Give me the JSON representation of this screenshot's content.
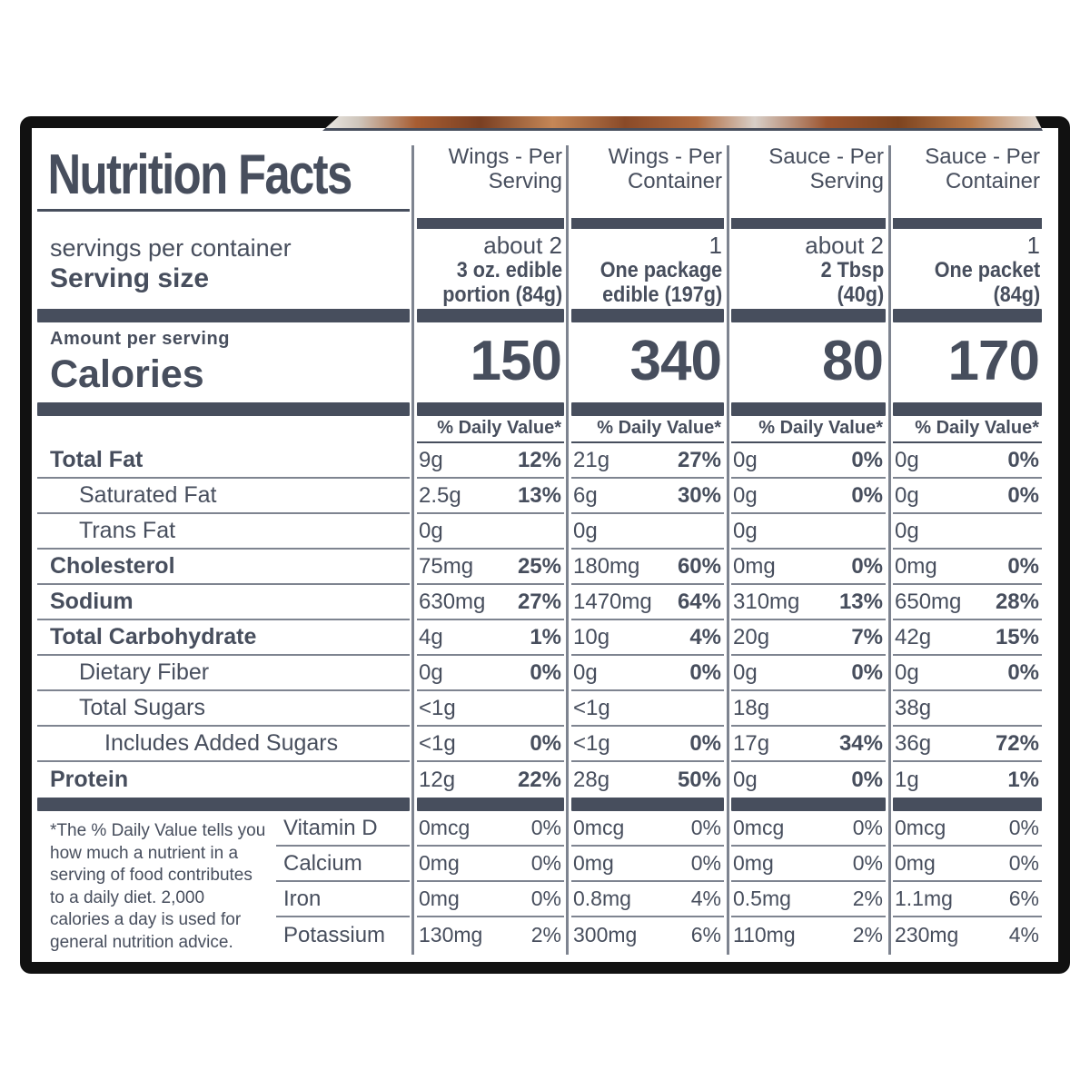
{
  "colors": {
    "ink": "#474E5D",
    "line": "#7E8490",
    "frame": "#111111"
  },
  "label": {
    "title": "Nutrition Facts",
    "servings_per_container": "servings per container",
    "serving_size": "Serving size",
    "amount_per_serving": "Amount per serving",
    "calories_word": "Calories",
    "daily_value_header": "% Daily Value*",
    "footnote": "*The % Daily Value tells you\nhow much a nutrient in a\nserving of food contributes\nto a daily diet. 2,000\ncalories a day is used for\ngeneral nutrition advice."
  },
  "columns": [
    {
      "header": "Wings - Per\nServing",
      "servings": "about 2",
      "size": "3 oz. edible\nportion (84g)",
      "calories": "150"
    },
    {
      "header": "Wings - Per\nContainer",
      "servings": "1",
      "size": "One package\nedible (197g)",
      "calories": "340"
    },
    {
      "header": "Sauce - Per\nServing",
      "servings": "about 2",
      "size": "2 Tbsp\n(40g)",
      "calories": "80"
    },
    {
      "header": "Sauce - Per\nContainer",
      "servings": "1",
      "size": "One packet\n(84g)",
      "calories": "170"
    }
  ],
  "nutrients": [
    {
      "label": "Total Fat",
      "values": [
        [
          "9g",
          "12%"
        ],
        [
          "21g",
          "27%"
        ],
        [
          "0g",
          "0%"
        ],
        [
          "0g",
          "0%"
        ]
      ]
    },
    {
      "label": "Saturated Fat",
      "values": [
        [
          "2.5g",
          "13%"
        ],
        [
          "6g",
          "30%"
        ],
        [
          "0g",
          "0%"
        ],
        [
          "0g",
          "0%"
        ]
      ]
    },
    {
      "label": "Trans Fat",
      "values": [
        [
          "0g",
          ""
        ],
        [
          "0g",
          ""
        ],
        [
          "0g",
          ""
        ],
        [
          "0g",
          ""
        ]
      ]
    },
    {
      "label": "Cholesterol",
      "values": [
        [
          "75mg",
          "25%"
        ],
        [
          "180mg",
          "60%"
        ],
        [
          "0mg",
          "0%"
        ],
        [
          "0mg",
          "0%"
        ]
      ]
    },
    {
      "label": "Sodium",
      "values": [
        [
          "630mg",
          "27%"
        ],
        [
          "1470mg",
          "64%"
        ],
        [
          "310mg",
          "13%"
        ],
        [
          "650mg",
          "28%"
        ]
      ]
    },
    {
      "label": "Total Carbohydrate",
      "values": [
        [
          "4g",
          "1%"
        ],
        [
          "10g",
          "4%"
        ],
        [
          "20g",
          "7%"
        ],
        [
          "42g",
          "15%"
        ]
      ]
    },
    {
      "label": "Dietary Fiber",
      "values": [
        [
          "0g",
          "0%"
        ],
        [
          "0g",
          "0%"
        ],
        [
          "0g",
          "0%"
        ],
        [
          "0g",
          "0%"
        ]
      ]
    },
    {
      "label": "Total Sugars",
      "values": [
        [
          "<1g",
          ""
        ],
        [
          "<1g",
          ""
        ],
        [
          "18g",
          ""
        ],
        [
          "38g",
          ""
        ]
      ]
    },
    {
      "label": "Includes Added Sugars",
      "values": [
        [
          "<1g",
          "0%"
        ],
        [
          "<1g",
          "0%"
        ],
        [
          "17g",
          "34%"
        ],
        [
          "36g",
          "72%"
        ]
      ]
    },
    {
      "label": "Protein",
      "values": [
        [
          "12g",
          "22%"
        ],
        [
          "28g",
          "50%"
        ],
        [
          "0g",
          "0%"
        ],
        [
          "1g",
          "1%"
        ]
      ]
    }
  ],
  "vitamins": [
    {
      "label": "Vitamin D",
      "values": [
        [
          "0mcg",
          "0%"
        ],
        [
          "0mcg",
          "0%"
        ],
        [
          "0mcg",
          "0%"
        ],
        [
          "0mcg",
          "0%"
        ]
      ]
    },
    {
      "label": "Calcium",
      "values": [
        [
          "0mg",
          "0%"
        ],
        [
          "0mg",
          "0%"
        ],
        [
          "0mg",
          "0%"
        ],
        [
          "0mg",
          "0%"
        ]
      ]
    },
    {
      "label": "Iron",
      "values": [
        [
          "0mg",
          "0%"
        ],
        [
          "0.8mg",
          "4%"
        ],
        [
          "0.5mg",
          "2%"
        ],
        [
          "1.1mg",
          "6%"
        ]
      ]
    },
    {
      "label": "Potassium",
      "values": [
        [
          "130mg",
          "2%"
        ],
        [
          "300mg",
          "6%"
        ],
        [
          "110mg",
          "2%"
        ],
        [
          "230mg",
          "4%"
        ]
      ]
    }
  ]
}
